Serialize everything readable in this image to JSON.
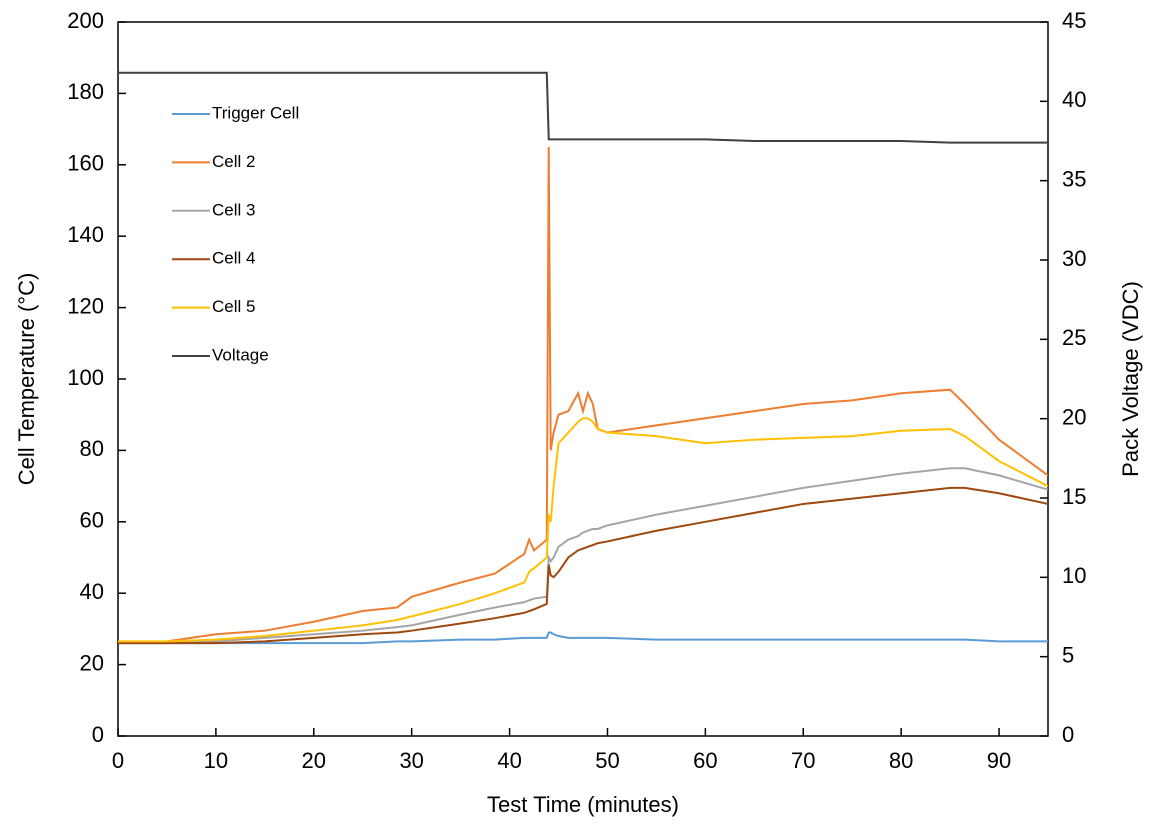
{
  "chart_data": {
    "type": "line",
    "xlabel": "Test Time (minutes)",
    "ylabel": "Cell Temperature (°C)",
    "y2label": "Pack Voltage (VDC)",
    "x": [
      0,
      5,
      10,
      15,
      20,
      25,
      28.5,
      30,
      35,
      38.5,
      41.5,
      42,
      42.5,
      43.8,
      44,
      44.2,
      44.5,
      45,
      46,
      47,
      47.5,
      48,
      48.5,
      49,
      50,
      55,
      60,
      65,
      70,
      75,
      80,
      85,
      86.5,
      90,
      95
    ],
    "series": [
      {
        "name": "Trigger Cell",
        "color": "#5b9bd5",
        "values": [
          26,
          26,
          26,
          26,
          26,
          26,
          26.5,
          26.5,
          27,
          27,
          27.5,
          27.5,
          27.5,
          27.5,
          29,
          29,
          28.5,
          28,
          27.5,
          27.5,
          27.5,
          27.5,
          27.5,
          27.5,
          27.5,
          27,
          27,
          27,
          27,
          27,
          27,
          27,
          27,
          26.5,
          26.5
        ]
      },
      {
        "name": "Cell 2",
        "color": "#ed7d31",
        "values": [
          26,
          26.5,
          28.5,
          29.5,
          32,
          35,
          36,
          39,
          43,
          45.5,
          51,
          55,
          52,
          55,
          165,
          80,
          85,
          90,
          91,
          96,
          91,
          96,
          93,
          86,
          85,
          87,
          89,
          91,
          93,
          94,
          96,
          97,
          93,
          83,
          73
        ]
      },
      {
        "name": "Cell 3",
        "color": "#a5a5a5",
        "values": [
          26,
          26,
          26.5,
          27.5,
          28.5,
          29.5,
          30.5,
          31,
          34,
          36,
          37.5,
          38,
          38.5,
          39,
          50,
          49,
          50,
          53,
          55,
          56,
          57,
          57.5,
          58,
          58,
          59,
          62,
          64.5,
          67,
          69.5,
          71.5,
          73.5,
          75,
          75,
          73,
          69
        ]
      },
      {
        "name": "Cell 4",
        "color": "#9e480e",
        "values": [
          26,
          26,
          26,
          26.5,
          27.5,
          28.5,
          29,
          29.5,
          31.5,
          33,
          34.5,
          35,
          35.5,
          37,
          48,
          45,
          44.5,
          46,
          50,
          52,
          52.5,
          53,
          53.5,
          54,
          54.5,
          57.5,
          60,
          62.5,
          65,
          66.5,
          68,
          69.5,
          69.5,
          68,
          65
        ]
      },
      {
        "name": "Cell 5",
        "color": "#ffc000",
        "values": [
          26.5,
          26.5,
          27,
          28,
          29.5,
          31,
          32.5,
          33.5,
          37,
          40,
          43,
          46,
          47,
          50,
          62,
          60,
          70,
          82,
          85,
          88,
          89,
          89,
          88,
          86,
          85,
          84,
          82,
          83,
          83.5,
          84,
          85.5,
          86,
          84,
          77,
          70
        ]
      },
      {
        "name": "Voltage",
        "color": "#404040",
        "axis": "y2",
        "values": [
          41.8,
          41.8,
          41.8,
          41.8,
          41.8,
          41.8,
          41.8,
          41.8,
          41.8,
          41.8,
          41.8,
          41.8,
          41.8,
          41.8,
          37.6,
          37.6,
          37.6,
          37.6,
          37.6,
          37.6,
          37.6,
          37.6,
          37.6,
          37.6,
          37.6,
          37.6,
          37.6,
          37.5,
          37.5,
          37.5,
          37.5,
          37.4,
          37.4,
          37.4,
          37.4
        ]
      }
    ],
    "xlim": [
      0,
      95
    ],
    "xticks": [
      0,
      10,
      20,
      30,
      40,
      50,
      60,
      70,
      80,
      90
    ],
    "ylim": [
      0,
      200
    ],
    "yticks": [
      0,
      20,
      40,
      60,
      80,
      100,
      120,
      140,
      160,
      180,
      200
    ],
    "y2lim": [
      0,
      45
    ],
    "y2ticks": [
      0,
      5,
      10,
      15,
      20,
      25,
      30,
      35,
      40,
      45
    ]
  }
}
